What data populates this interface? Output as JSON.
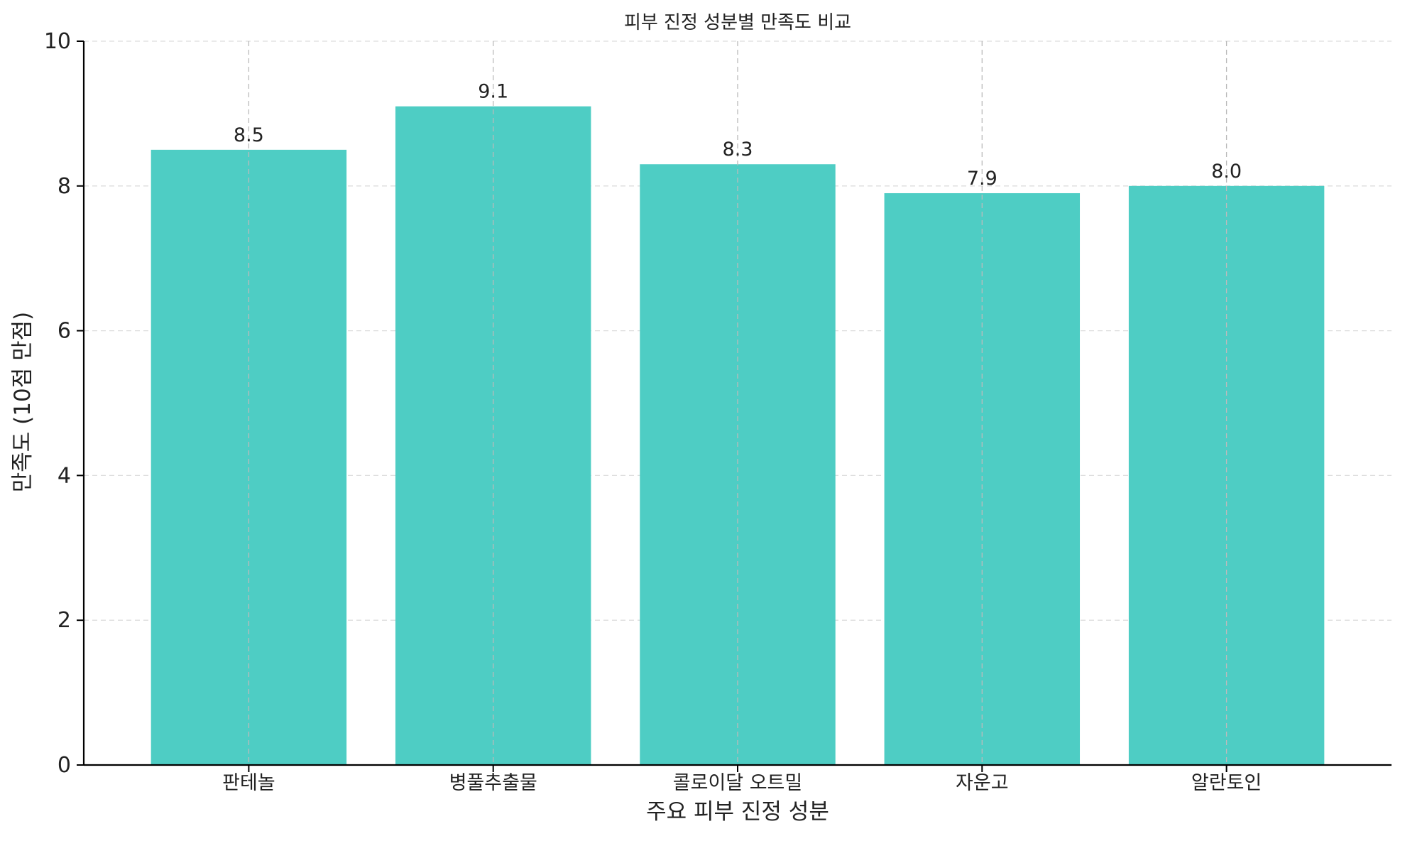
{
  "chart_data": {
    "type": "bar",
    "title": "피부 진정 성분별 만족도 비교",
    "xlabel": "주요 피부 진정 성분",
    "ylabel": "만족도 (10점 만점)",
    "categories": [
      "판테놀",
      "병풀추출물",
      "콜로이달 오트밀",
      "자운고",
      "알란토인"
    ],
    "values": [
      8.5,
      9.1,
      8.3,
      7.9,
      8.0
    ],
    "value_labels": [
      "8.5",
      "9.1",
      "8.3",
      "7.9",
      "8.0"
    ],
    "ylim": [
      0,
      10
    ],
    "yticks": [
      0,
      2,
      4,
      6,
      8,
      10
    ],
    "ytick_labels": [
      "0",
      "2",
      "4",
      "6",
      "8",
      "10"
    ],
    "grid": true,
    "bar_color": "#4ECDC4",
    "grid_color": "#cccccc",
    "axis_color": "#000000"
  }
}
